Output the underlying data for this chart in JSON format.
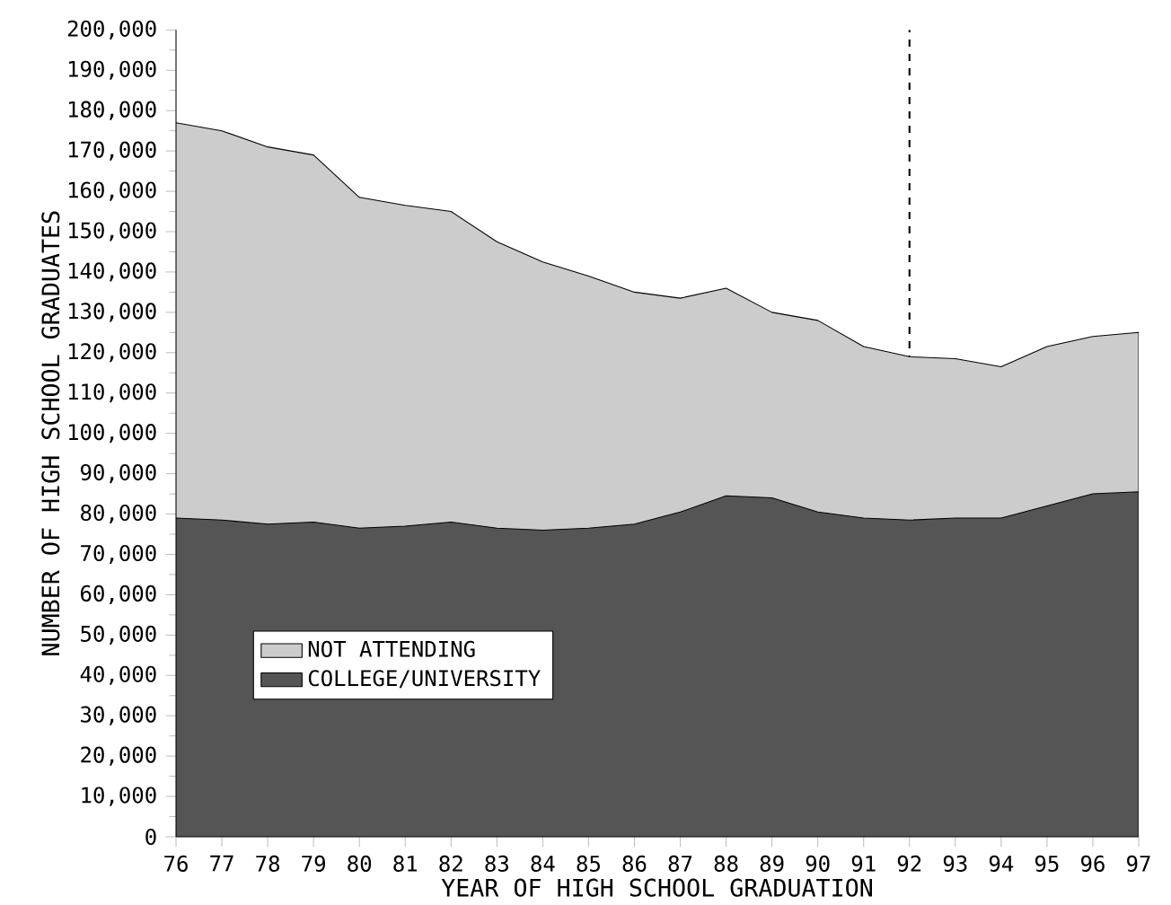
{
  "chart_data": {
    "type": "area",
    "stacked": true,
    "xlabel": "YEAR OF HIGH SCHOOL GRADUATION",
    "ylabel": "NUMBER OF HIGH SCHOOL GRADUATES",
    "x": [
      76,
      77,
      78,
      79,
      80,
      81,
      82,
      83,
      84,
      85,
      86,
      87,
      88,
      89,
      90,
      91,
      92,
      93,
      94,
      95,
      96,
      97
    ],
    "series": [
      {
        "name": "COLLEGE/UNIVERSITY",
        "color": "#555555",
        "values": [
          79000,
          78500,
          77500,
          78000,
          76500,
          77000,
          78000,
          76500,
          76000,
          76500,
          77500,
          80500,
          84500,
          84000,
          80500,
          79000,
          78500,
          79000,
          79000,
          82000,
          85000,
          85500
        ]
      },
      {
        "name": "NOT ATTENDING",
        "color": "#cccccc",
        "values": [
          98000,
          96500,
          93500,
          91000,
          82000,
          79500,
          77000,
          71000,
          66500,
          62500,
          57500,
          53000,
          51500,
          46000,
          47500,
          42500,
          40500,
          39500,
          37500,
          39500,
          39000,
          39500
        ]
      }
    ],
    "xlim": [
      76,
      97
    ],
    "ylim": [
      0,
      200000
    ],
    "xticks": [
      76,
      77,
      78,
      79,
      80,
      81,
      82,
      83,
      84,
      85,
      86,
      87,
      88,
      89,
      90,
      91,
      92,
      93,
      94,
      95,
      96,
      97
    ],
    "yticks": [
      {
        "value": 0,
        "label": "0"
      },
      {
        "value": 10000,
        "label": "10,000"
      },
      {
        "value": 20000,
        "label": "20,000"
      },
      {
        "value": 30000,
        "label": "30,000"
      },
      {
        "value": 40000,
        "label": "40,000"
      },
      {
        "value": 50000,
        "label": "50,000"
      },
      {
        "value": 60000,
        "label": "60,000"
      },
      {
        "value": 70000,
        "label": "70,000"
      },
      {
        "value": 80000,
        "label": "80,000"
      },
      {
        "value": 90000,
        "label": "90,000"
      },
      {
        "value": 100000,
        "label": "100,000"
      },
      {
        "value": 110000,
        "label": "110,000"
      },
      {
        "value": 120000,
        "label": "120,000"
      },
      {
        "value": 130000,
        "label": "130,000"
      },
      {
        "value": 140000,
        "label": "140,000"
      },
      {
        "value": 150000,
        "label": "150,000"
      },
      {
        "value": 160000,
        "label": "160,000"
      },
      {
        "value": 170000,
        "label": "170,000"
      },
      {
        "value": 180000,
        "label": "180,000"
      },
      {
        "value": 190000,
        "label": "190,000"
      },
      {
        "value": 200000,
        "label": "200,000"
      }
    ],
    "ref_lines": [
      {
        "axis": "x",
        "value": 92,
        "line_style": "dashed"
      }
    ],
    "grid": false,
    "legend": "left"
  }
}
